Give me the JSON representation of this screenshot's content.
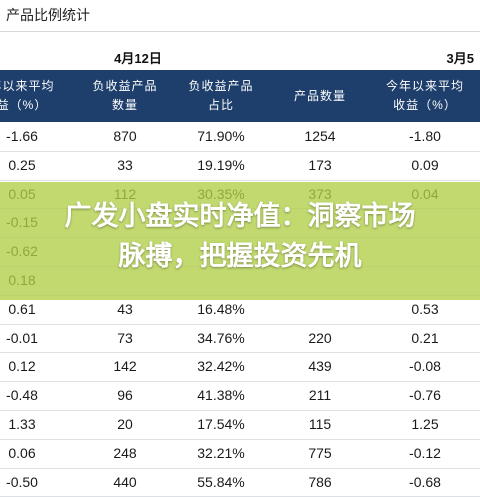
{
  "page": {
    "title": "产品比例统计"
  },
  "table": {
    "group_1_date": "4月12日",
    "group_2_date": "3月5",
    "headers": [
      [
        "年以来平均",
        "益（%）"
      ],
      [
        "负收益产品",
        "数量"
      ],
      [
        "负收益产品",
        "占比"
      ],
      [
        "产品数量"
      ],
      [
        "今年以来平均",
        "收益（%）"
      ]
    ],
    "rows": [
      [
        "-1.66",
        "870",
        "71.90%",
        "1254",
        "-1.80"
      ],
      [
        "0.25",
        "33",
        "19.19%",
        "173",
        "0.09"
      ],
      [
        "0.05",
        "112",
        "30.35%",
        "373",
        "0.04"
      ],
      [
        "-0.15",
        "",
        "",
        "",
        ""
      ],
      [
        "-0.62",
        "",
        "",
        "",
        ""
      ],
      [
        "0.18",
        "",
        "",
        "",
        ""
      ],
      [
        "0.61",
        "43",
        "16.48%",
        "",
        "0.53"
      ],
      [
        "-0.01",
        "73",
        "34.76%",
        "220",
        "0.21"
      ],
      [
        "0.12",
        "142",
        "32.42%",
        "439",
        "-0.08"
      ],
      [
        "-0.48",
        "96",
        "41.38%",
        "211",
        "-0.76"
      ],
      [
        "1.33",
        "20",
        "17.54%",
        "115",
        "1.25"
      ],
      [
        "0.06",
        "248",
        "32.21%",
        "775",
        "-0.12"
      ],
      [
        "-0.50",
        "440",
        "55.84%",
        "786",
        "-0.68"
      ]
    ]
  },
  "overlay": {
    "line1": "广发小盘实时净值：洞察市场",
    "line2": "脉搏，把握投资先机"
  },
  "colors": {
    "header_bg": "#1e3e6b",
    "overlay_bg": "#b0ce46"
  }
}
